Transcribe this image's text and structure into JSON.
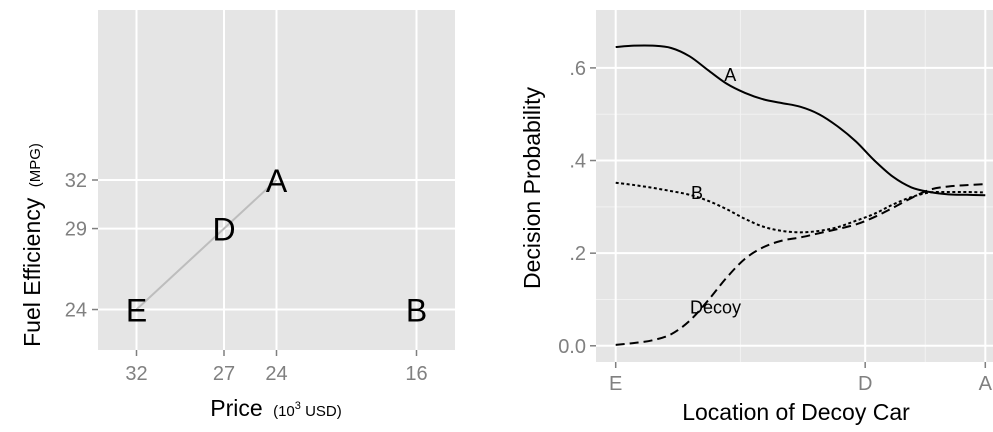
{
  "chart_data": [
    {
      "type": "scatter",
      "xlabel": "Price",
      "xlabel_unit_base": "(10",
      "xlabel_unit_exp": "3",
      "xlabel_unit_rest": " USD)",
      "ylabel": "Fuel Efficiency",
      "ylabel_unit": "(MPG)",
      "x_reversed": true,
      "xlim": [
        34.2,
        13.8
      ],
      "ylim": [
        21.5,
        42.5
      ],
      "x_ticks": [
        32,
        27,
        24,
        16
      ],
      "x_tick_labels": [
        "32",
        "27",
        "24",
        "16"
      ],
      "y_ticks": [
        24,
        29,
        32
      ],
      "y_tick_labels": [
        "24",
        "29",
        "32"
      ],
      "grid": true,
      "points": [
        {
          "label": "A",
          "x": 24,
          "y": 32
        },
        {
          "label": "D",
          "x": 27,
          "y": 29
        },
        {
          "label": "E",
          "x": 32,
          "y": 24
        },
        {
          "label": "B",
          "x": 16,
          "y": 24
        }
      ],
      "line": {
        "from": "E",
        "to": "A",
        "color": "#bdbdbd"
      }
    },
    {
      "type": "line",
      "xlabel": "Location of Decoy Car",
      "ylabel": "Decision Probability",
      "xlim": [
        -0.01,
        1.01
      ],
      "ylim": [
        -0.035,
        0.725
      ],
      "x_ticks": [
        0,
        0.675,
        1
      ],
      "x_tick_labels": [
        "E",
        "D",
        "A"
      ],
      "y_ticks": [
        0,
        0.2,
        0.4,
        0.6
      ],
      "y_tick_labels": [
        "0.0",
        ".2",
        ".4",
        ".6"
      ],
      "grid": true,
      "series": [
        {
          "name": "A",
          "style": "solid",
          "x": [
            0,
            0.05,
            0.1,
            0.15,
            0.2,
            0.25,
            0.3,
            0.35,
            0.4,
            0.45,
            0.5,
            0.55,
            0.6,
            0.65,
            0.7,
            0.75,
            0.8,
            0.85,
            0.9,
            0.95,
            1
          ],
          "y": [
            0.645,
            0.648,
            0.648,
            0.643,
            0.625,
            0.595,
            0.566,
            0.546,
            0.532,
            0.524,
            0.516,
            0.5,
            0.474,
            0.441,
            0.4,
            0.365,
            0.342,
            0.332,
            0.327,
            0.326,
            0.325
          ]
        },
        {
          "name": "B",
          "style": "dotted",
          "x": [
            0,
            0.05,
            0.1,
            0.15,
            0.2,
            0.25,
            0.3,
            0.35,
            0.4,
            0.45,
            0.5,
            0.55,
            0.6,
            0.65,
            0.7,
            0.75,
            0.8,
            0.85,
            0.9,
            0.95,
            1
          ],
          "y": [
            0.352,
            0.347,
            0.341,
            0.334,
            0.326,
            0.313,
            0.295,
            0.274,
            0.257,
            0.248,
            0.245,
            0.248,
            0.256,
            0.27,
            0.285,
            0.305,
            0.321,
            0.331,
            0.332,
            0.332,
            0.331
          ]
        },
        {
          "name": "Decoy",
          "style": "dashed",
          "x": [
            0,
            0.05,
            0.1,
            0.15,
            0.2,
            0.25,
            0.3,
            0.35,
            0.4,
            0.45,
            0.5,
            0.55,
            0.6,
            0.65,
            0.7,
            0.75,
            0.8,
            0.85,
            0.9,
            0.95,
            1
          ],
          "y": [
            0.002,
            0.006,
            0.012,
            0.025,
            0.054,
            0.098,
            0.147,
            0.188,
            0.213,
            0.227,
            0.234,
            0.243,
            0.252,
            0.262,
            0.278,
            0.298,
            0.319,
            0.337,
            0.344,
            0.347,
            0.349
          ]
        }
      ],
      "annotations": [
        {
          "text": "A",
          "x": 0.31,
          "y": 0.585
        },
        {
          "text": "B",
          "x": 0.22,
          "y": 0.33
        },
        {
          "text": "Decoy",
          "x": 0.27,
          "y": 0.083
        }
      ]
    }
  ]
}
